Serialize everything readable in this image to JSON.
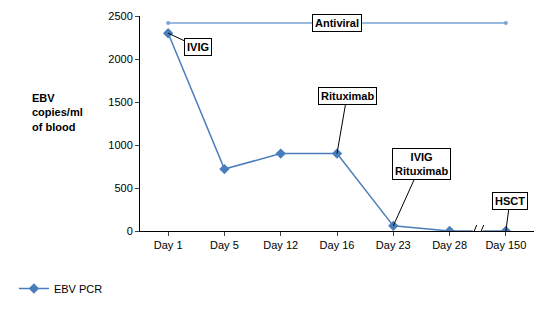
{
  "chart_data": {
    "type": "line",
    "categories": [
      "Day 1",
      "Day 5",
      "Day 12",
      "Day 16",
      "Day 23",
      "Day 28",
      "Day 150"
    ],
    "series": [
      {
        "name": "EBV PCR",
        "color": "#4a7ebb",
        "marker": "diamond",
        "line_style": "solid",
        "values": [
          2300,
          720,
          900,
          900,
          60,
          0,
          0
        ]
      }
    ],
    "y_label": [
      "EBV",
      "copies/ml",
      "of blood"
    ],
    "ylim": [
      0,
      2500
    ],
    "yticks": [
      0,
      500,
      1000,
      1500,
      2000,
      2500
    ],
    "grid": false,
    "legend": "bottom left",
    "treatment_lines": [
      {
        "label": "Antiviral",
        "start": "Day 1",
        "end": "Day 150",
        "value": 2420,
        "color": "#7aa3d6"
      }
    ],
    "annotations": [
      {
        "text": [
          "IVIG"
        ],
        "x": "Day 1",
        "y": 2300
      },
      {
        "text": [
          "Rituximab"
        ],
        "x": "Day 16",
        "y": 900
      },
      {
        "text": [
          "IVIG",
          "Rituximab"
        ],
        "x": "Day 23",
        "y": 60
      },
      {
        "text": [
          "HSCT"
        ],
        "x": "Day 150",
        "y": 0
      }
    ]
  }
}
